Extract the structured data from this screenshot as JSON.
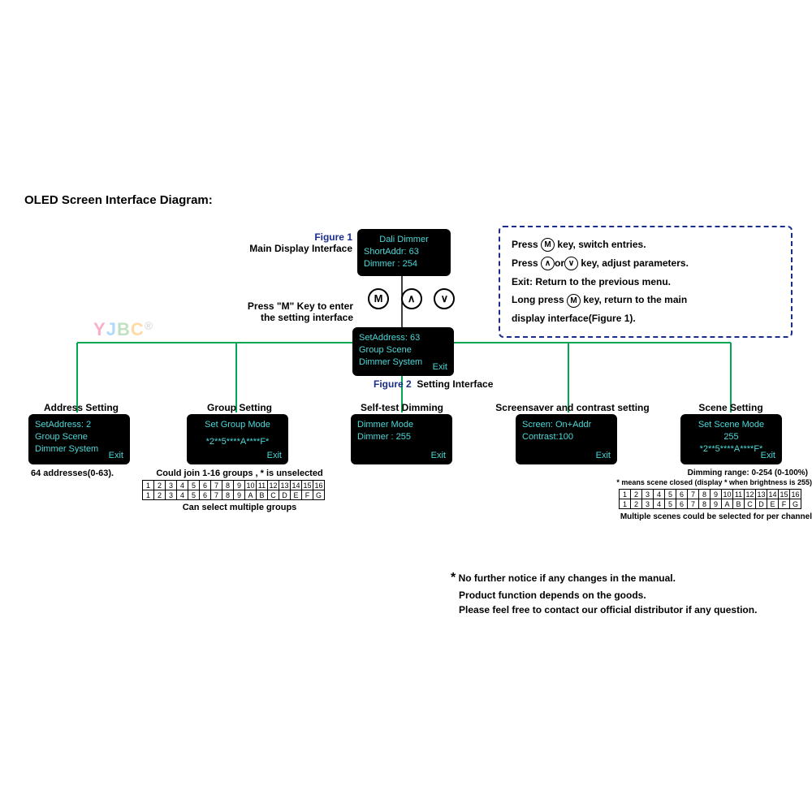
{
  "title": "OLED Screen Interface Diagram:",
  "colors": {
    "oled_bg": "#000000",
    "oled_text": "#4dd8d8",
    "connector": "#00a651",
    "connector_black": "#000000",
    "dash_border": "#1a2d8a",
    "label_blue": "#1a2d8a"
  },
  "watermark": "YJBC®",
  "figure1": {
    "caption_fig": "Figure 1",
    "caption": "Main Display Interface",
    "line1": "Dali Dimmer",
    "line2": "ShortAddr:  63",
    "line3": "Dimmer   : 254"
  },
  "press_m_text": "Press \"M\" Key to enter\nthe setting interface",
  "keys": {
    "m": "M",
    "up": "∧",
    "down": "∨"
  },
  "figure2": {
    "caption_fig": "Figure 2",
    "caption": "Setting Interface",
    "line1": "SetAddress: 63",
    "line2": "Group  Scene",
    "line3": "Dimmer  System",
    "exit": "Exit"
  },
  "info": {
    "l1a": "Press",
    "l1b": "key,  switch entries.",
    "l2a": "Press",
    "l2b": "or",
    "l2c": "key, adjust parameters.",
    "l3": "Exit: Return to the previous menu.",
    "l4a": "Long press",
    "l4b": "key, return to the main",
    "l5": "display interface(Figure 1)."
  },
  "boxes": {
    "address": {
      "title": "Address Setting",
      "line1": "SetAddress: 2",
      "line2": "Group  Scene",
      "line3": "Dimmer  System",
      "exit": "Exit",
      "note": "64 addresses(0-63)."
    },
    "group": {
      "title": "Group Setting",
      "line1": "Set Group Mode",
      "line2": "*2**5****A****F*",
      "exit": "Exit",
      "note1": "Could join 1-16 groups , * is unselected",
      "note2": "Can select multiple groups",
      "row1": [
        "1",
        "2",
        "3",
        "4",
        "5",
        "6",
        "7",
        "8",
        "9",
        "10",
        "11",
        "12",
        "13",
        "14",
        "15",
        "16"
      ],
      "row2": [
        "1",
        "2",
        "3",
        "4",
        "5",
        "6",
        "7",
        "8",
        "9",
        "A",
        "B",
        "C",
        "D",
        "E",
        "F",
        "G"
      ]
    },
    "selftest": {
      "title": "Self-test Dimming",
      "line1": "Dimmer  Mode",
      "line2": "Dimmer  :  255",
      "exit": "Exit"
    },
    "screensaver": {
      "title": "Screensaver and contrast setting",
      "line1": "Screen: On+Addr",
      "line2": "Contrast:100",
      "exit": "Exit"
    },
    "scene": {
      "title": "Scene Setting",
      "line1": "Set Scene Mode",
      "line2": "255",
      "line3": "*2**5****A****F*",
      "exit": "Exit",
      "note1": "Dimming range: 0-254 (0-100%)",
      "note2": "*  means scene closed (display * when brightness is 255)",
      "note3": "Multiple scenes could be selected for per channel",
      "row1": [
        "1",
        "2",
        "3",
        "4",
        "5",
        "6",
        "7",
        "8",
        "9",
        "10",
        "11",
        "12",
        "13",
        "14",
        "15",
        "16"
      ],
      "row2": [
        "1",
        "2",
        "3",
        "4",
        "5",
        "6",
        "7",
        "8",
        "9",
        "A",
        "B",
        "C",
        "D",
        "E",
        "F",
        "G"
      ]
    }
  },
  "footer": {
    "star": "*",
    "l1": "No further notice if any changes in the manual.",
    "l2": "Product function depends on the goods.",
    "l3": "Please feel free to contact our official distributor if any question."
  }
}
